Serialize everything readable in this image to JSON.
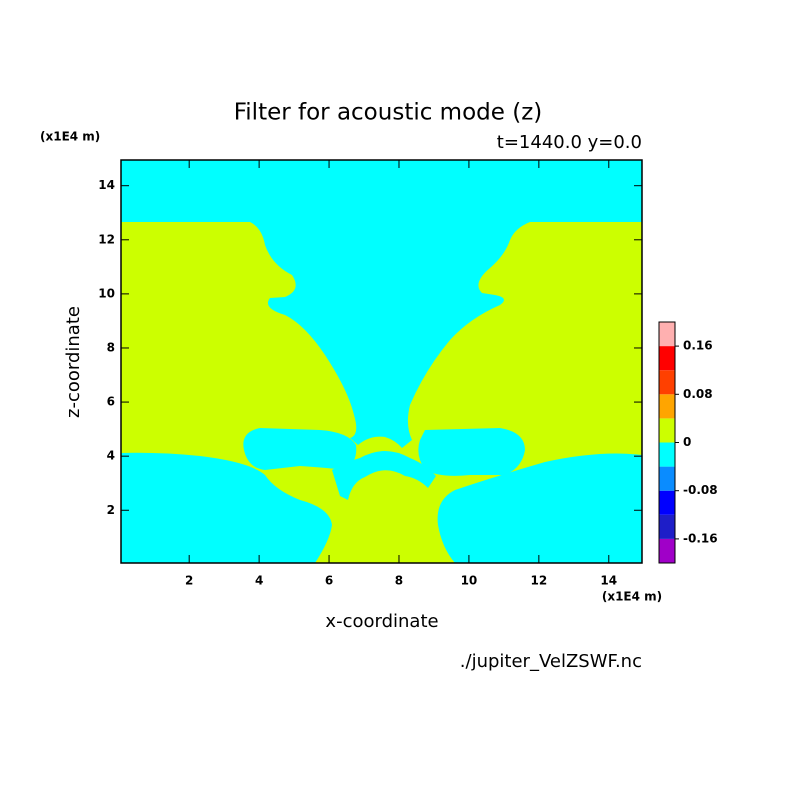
{
  "chart_data": {
    "type": "filled-contour",
    "title": "Filter for acoustic mode (z)",
    "subtitle": "t=1440.0 y=0.0",
    "x_label": "x-coordinate",
    "y_label": "z-coordinate",
    "x_unit": "(x1E4 m)",
    "y_unit": "(x1E4 m)",
    "footer": "./jupiter_VelZSWF.nc",
    "xlim": [
      0.05,
      14.95
    ],
    "ylim": [
      0.05,
      14.95
    ],
    "xticks": [
      2,
      4,
      6,
      8,
      10,
      12,
      14
    ],
    "yticks": [
      2,
      4,
      6,
      8,
      10,
      12,
      14
    ],
    "levels": [
      -0.16,
      -0.12,
      -0.08,
      -0.04,
      0,
      0.04,
      0.08,
      0.12,
      0.16
    ],
    "colors": [
      "#a000c8",
      "#1e1ec8",
      "#0000ff",
      "#0a8cff",
      "#00ffff",
      "#ccff00",
      "#ffa500",
      "#ff4000",
      "#ff0000",
      "#ffb0b0"
    ],
    "colorbar_ticks": [
      -0.16,
      -0.08,
      0,
      0.08,
      0.16
    ]
  }
}
